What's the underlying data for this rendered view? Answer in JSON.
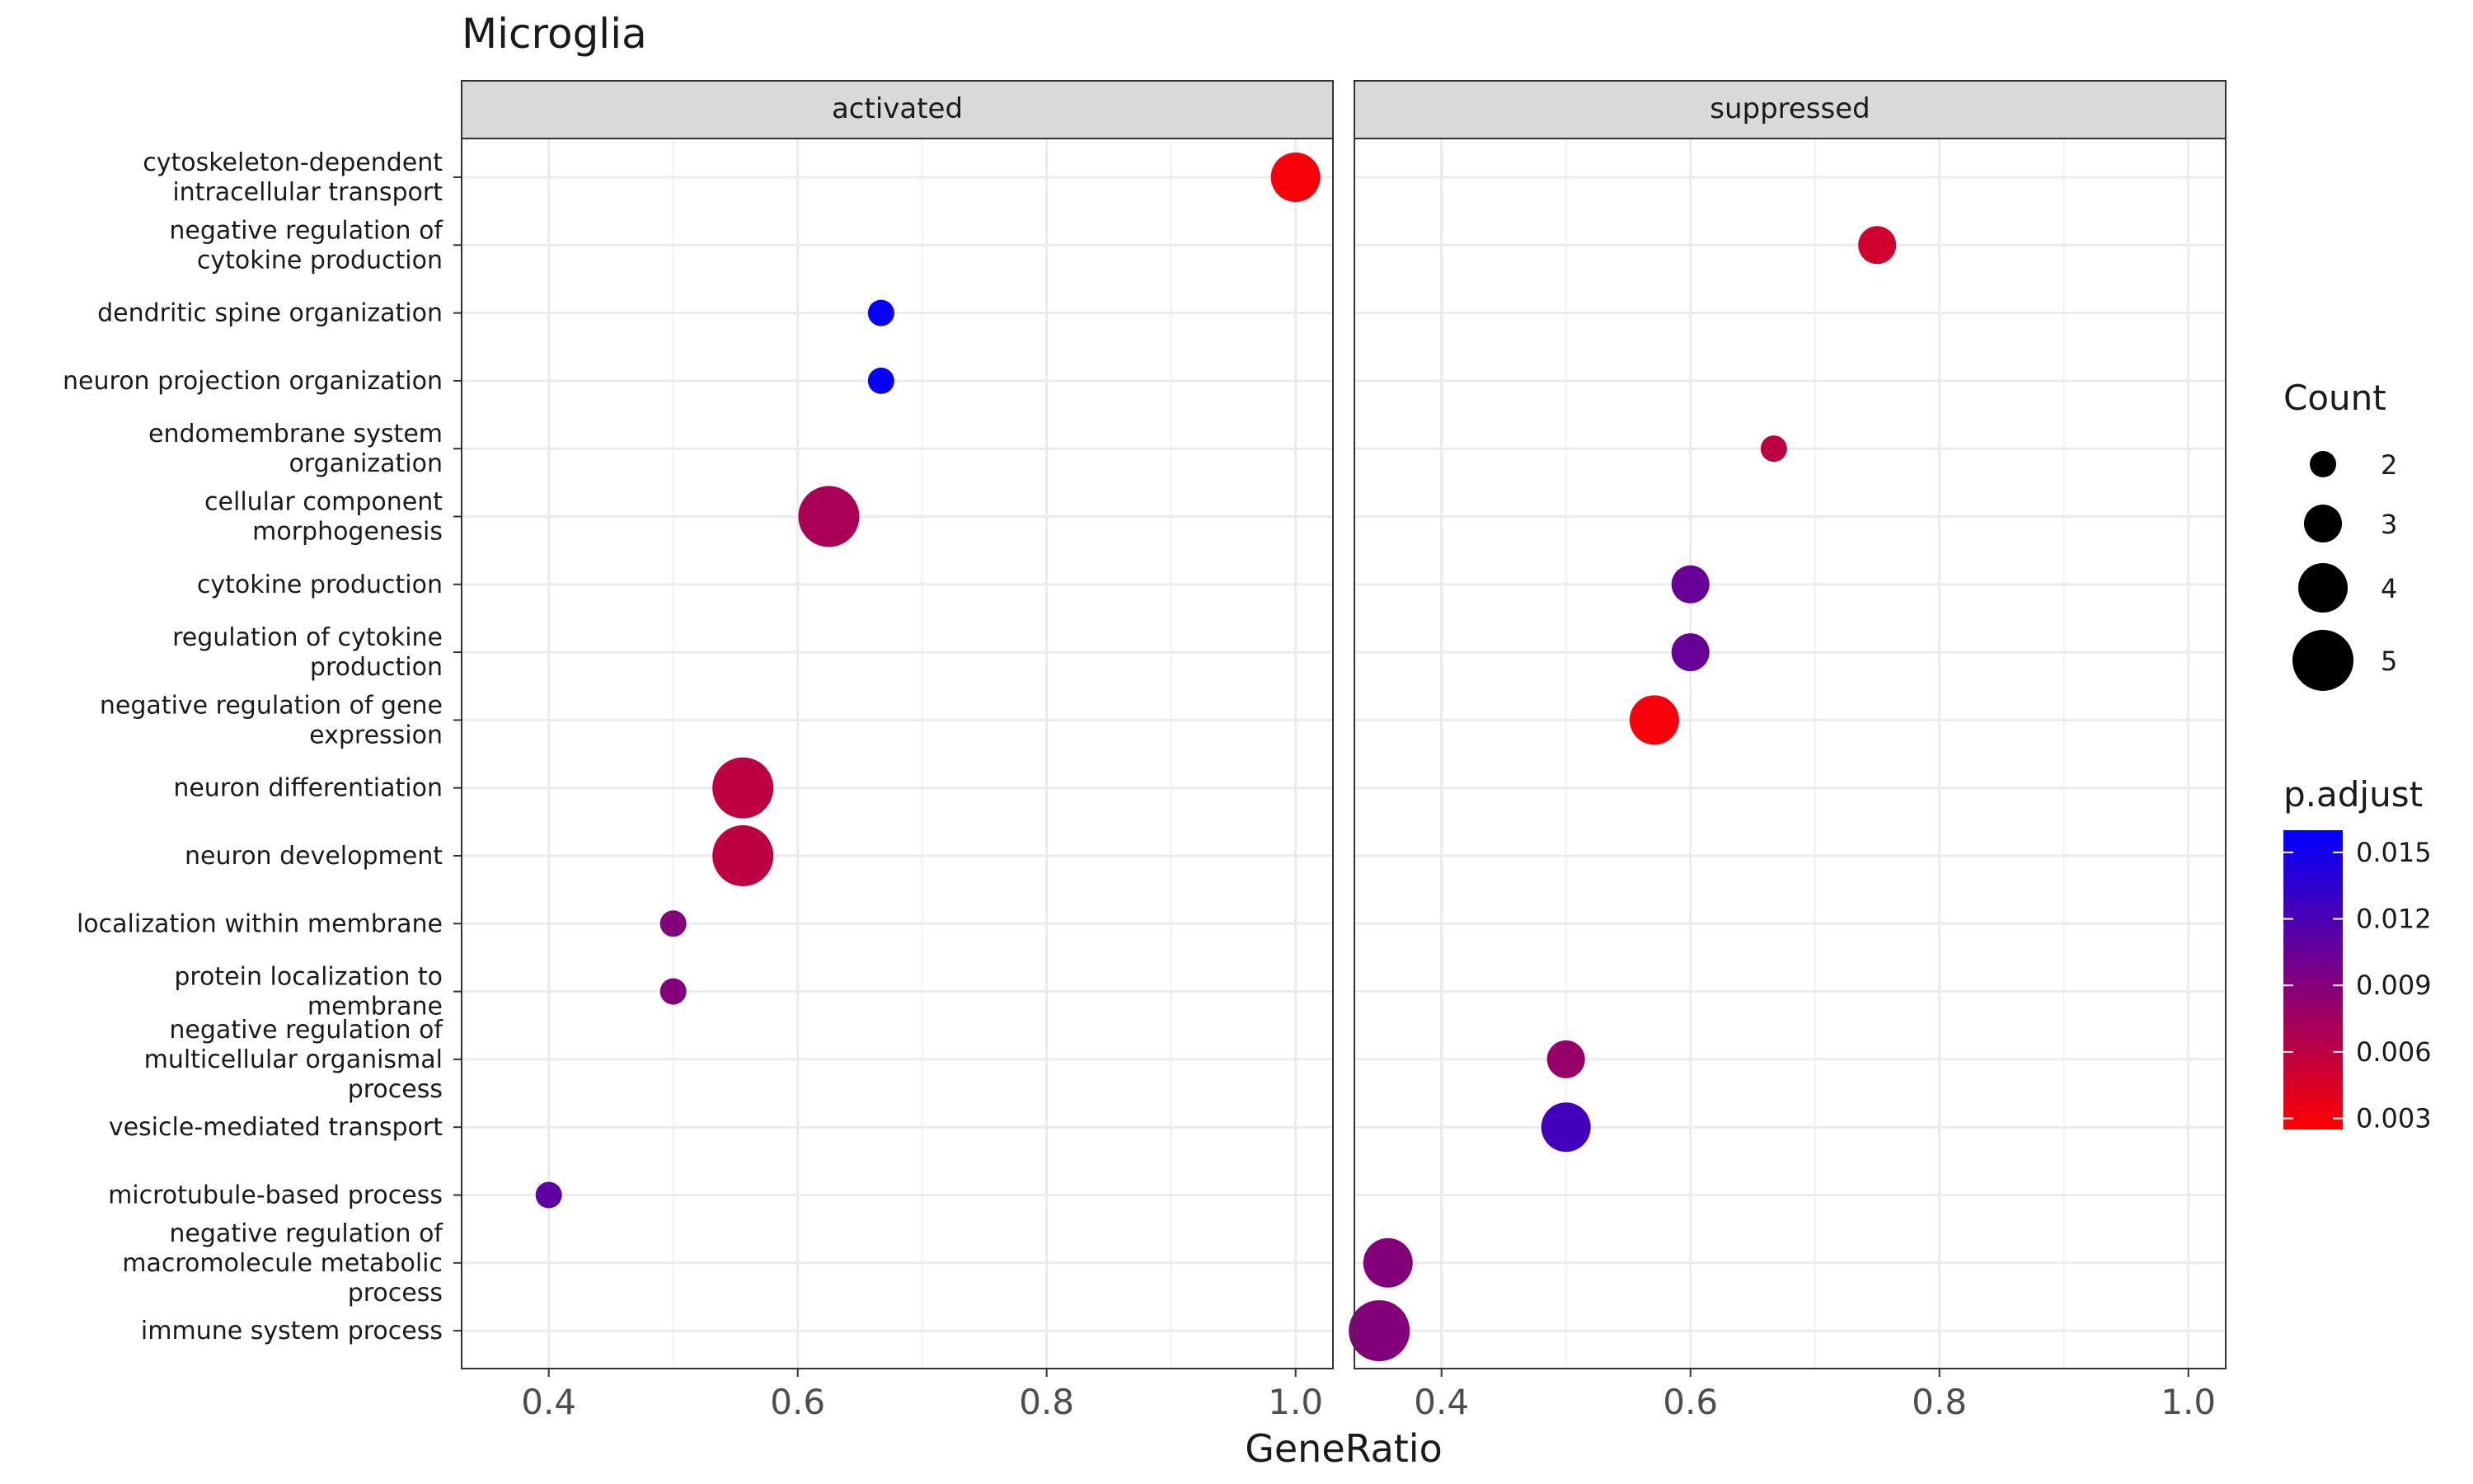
{
  "chart_data": {
    "type": "scatter",
    "title": "Microglia",
    "xlabel": "GeneRatio",
    "ylabel": "",
    "xlim": [
      0.33,
      1.03
    ],
    "x_ticks": [
      0.4,
      0.6,
      0.8,
      1.0
    ],
    "x_tick_labels": [
      "0.4",
      "0.6",
      "0.8",
      "1.0"
    ],
    "grid": true,
    "facets": [
      "activated",
      "suppressed"
    ],
    "terms": [
      "cytoskeleton-dependent\nintracellular transport",
      "negative regulation of\ncytokine production",
      "dendritic spine organization",
      "neuron projection organization",
      "endomembrane system\norganization",
      "cellular component\nmorphogenesis",
      "cytokine production",
      "regulation of cytokine\nproduction",
      "negative regulation of gene\nexpression",
      "neuron differentiation",
      "neuron development",
      "localization within membrane",
      "protein localization to\nmembrane",
      "negative regulation of\nmulticellular organismal\nprocess",
      "vesicle-mediated transport",
      "microtubule-based process",
      "negative regulation of\nmacromolecule metabolic\nprocess",
      "immune system process"
    ],
    "points": [
      {
        "facet": "activated",
        "term": 0,
        "x": 1.0,
        "count": 4,
        "p_adjust": 0.003
      },
      {
        "facet": "activated",
        "term": 2,
        "x": 0.667,
        "count": 2,
        "p_adjust": 0.0155
      },
      {
        "facet": "activated",
        "term": 3,
        "x": 0.667,
        "count": 2,
        "p_adjust": 0.0155
      },
      {
        "facet": "activated",
        "term": 5,
        "x": 0.625,
        "count": 5,
        "p_adjust": 0.007
      },
      {
        "facet": "activated",
        "term": 9,
        "x": 0.556,
        "count": 5,
        "p_adjust": 0.006
      },
      {
        "facet": "activated",
        "term": 10,
        "x": 0.556,
        "count": 5,
        "p_adjust": 0.006
      },
      {
        "facet": "activated",
        "term": 11,
        "x": 0.5,
        "count": 2,
        "p_adjust": 0.009
      },
      {
        "facet": "activated",
        "term": 12,
        "x": 0.5,
        "count": 2,
        "p_adjust": 0.009
      },
      {
        "facet": "activated",
        "term": 15,
        "x": 0.4,
        "count": 2,
        "p_adjust": 0.011
      },
      {
        "facet": "suppressed",
        "term": 1,
        "x": 0.75,
        "count": 3,
        "p_adjust": 0.005
      },
      {
        "facet": "suppressed",
        "term": 4,
        "x": 0.667,
        "count": 2,
        "p_adjust": 0.006
      },
      {
        "facet": "suppressed",
        "term": 6,
        "x": 0.6,
        "count": 3,
        "p_adjust": 0.0105
      },
      {
        "facet": "suppressed",
        "term": 7,
        "x": 0.6,
        "count": 3,
        "p_adjust": 0.0105
      },
      {
        "facet": "suppressed",
        "term": 8,
        "x": 0.571,
        "count": 4,
        "p_adjust": 0.003
      },
      {
        "facet": "suppressed",
        "term": 13,
        "x": 0.5,
        "count": 3,
        "p_adjust": 0.008
      },
      {
        "facet": "suppressed",
        "term": 14,
        "x": 0.5,
        "count": 4,
        "p_adjust": 0.0125
      },
      {
        "facet": "suppressed",
        "term": 16,
        "x": 0.357,
        "count": 4,
        "p_adjust": 0.009
      },
      {
        "facet": "suppressed",
        "term": 17,
        "x": 0.35,
        "count": 5,
        "p_adjust": 0.009
      }
    ],
    "size_legend": {
      "title": "Count",
      "values": [
        2,
        3,
        4,
        5
      ]
    },
    "color_legend": {
      "title": "p.adjust",
      "range": [
        0.0025,
        0.016
      ],
      "ticks": [
        0.015,
        0.012,
        0.009,
        0.006,
        0.003
      ],
      "tick_labels": [
        "0.015",
        "0.012",
        "0.009",
        "0.006",
        "0.003"
      ],
      "low_color": "#ff0000",
      "high_color": "#0000ff"
    }
  }
}
